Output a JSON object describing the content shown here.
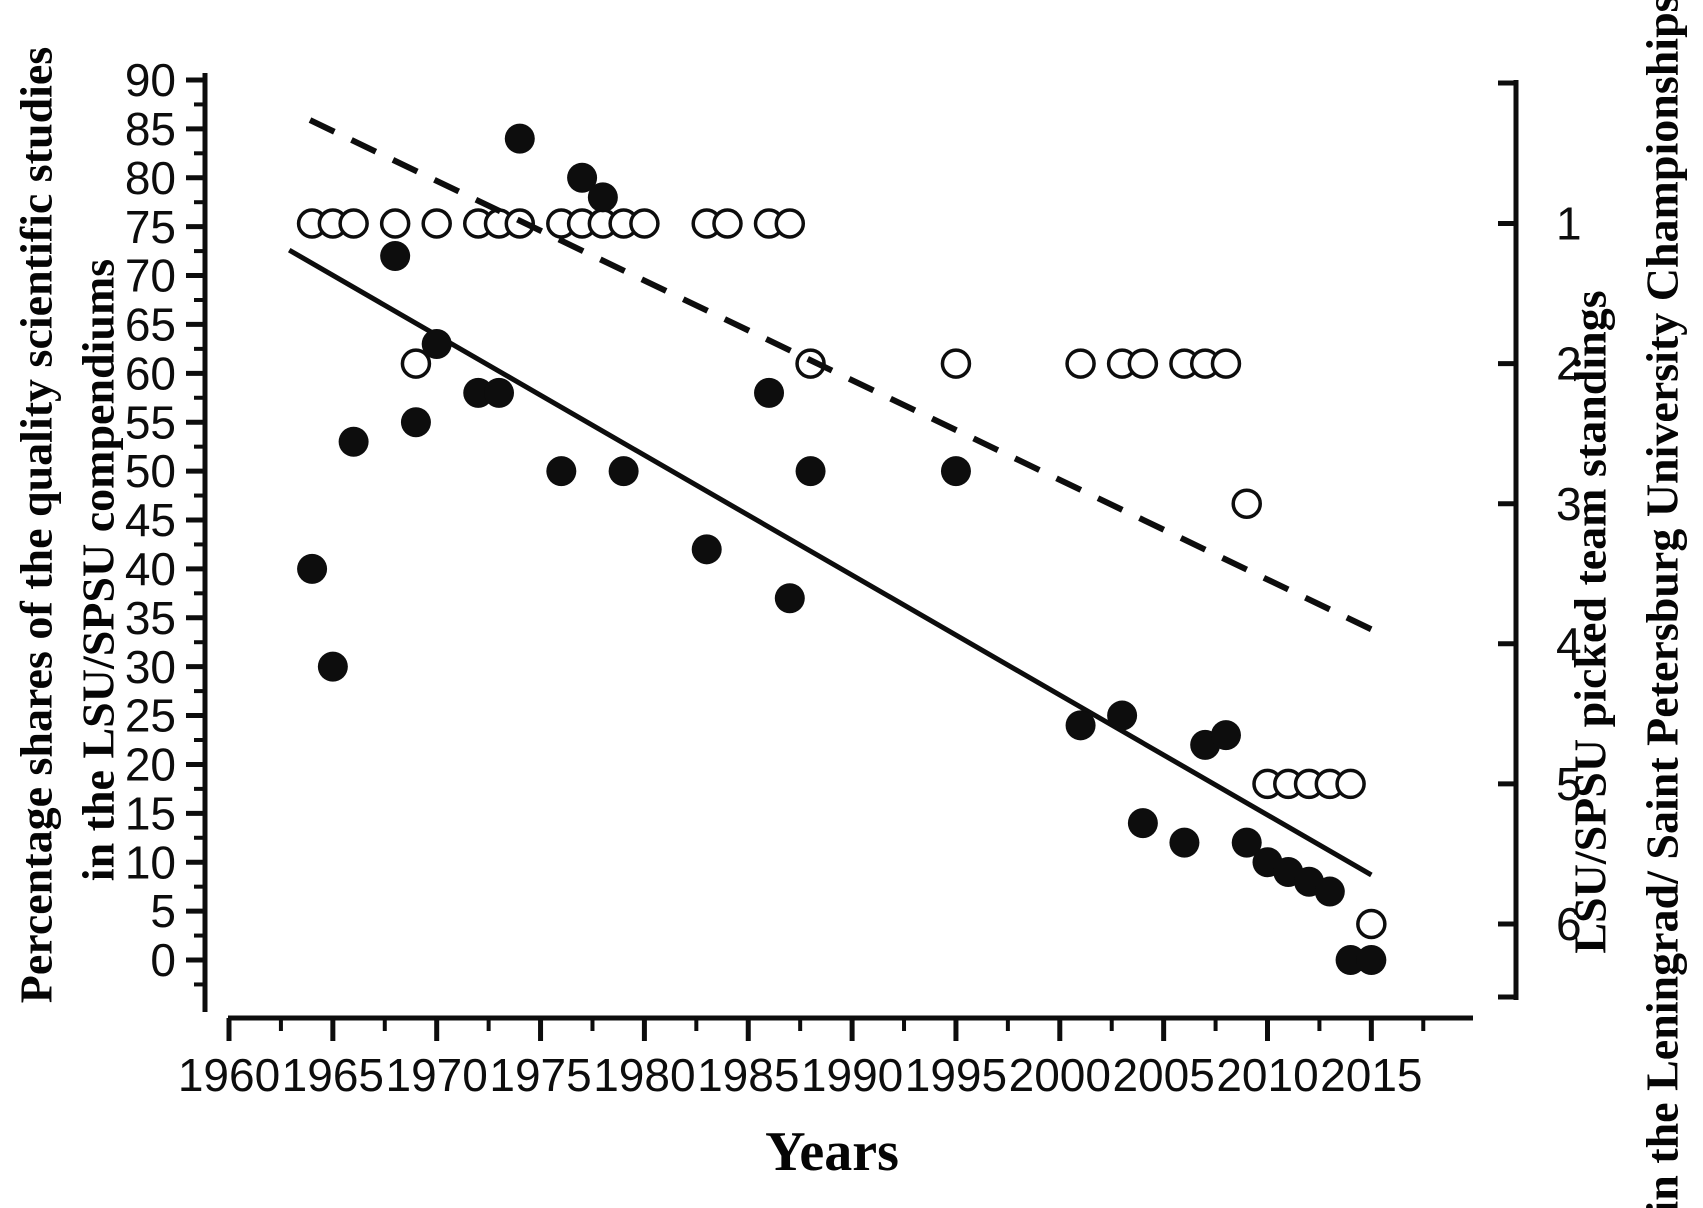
{
  "figure": {
    "background": "#ffffff",
    "ink_color": "#0d0d0d",
    "open_marker_fill": "#ffffff"
  },
  "titles": {
    "left_axis_line1": "Percentage shares of the quality scientific studies",
    "left_axis_line2": "in the LSU/SPSU compendiums",
    "right_axis_line1": "LSU/SPSU picked team standings",
    "right_axis_line2": "in the Leningrad/ Saint Petersburg University Championships",
    "x_axis": "Years"
  },
  "chart_data": {
    "type": "scatter",
    "title": "",
    "xlabel": "Years",
    "x_axis": {
      "range": [
        1960,
        2019
      ],
      "major_ticks": [
        1960,
        1965,
        1970,
        1975,
        1980,
        1985,
        1990,
        1995,
        2000,
        2005,
        2010,
        2015
      ],
      "minor_tick_step": 2.5,
      "grid": false
    },
    "left_y_axis": {
      "label": "Percentage shares of the quality scientific studies in the LSU/SPSU compendiums",
      "range": [
        0,
        90
      ],
      "major_ticks": [
        0,
        5,
        10,
        15,
        20,
        25,
        30,
        35,
        40,
        45,
        50,
        55,
        60,
        65,
        70,
        75,
        80,
        85,
        90
      ],
      "minor_tick_step": 2.5
    },
    "right_y_axis": {
      "label": "LSU/SPSU picked team standings in the Leningrad/ Saint Petersburg University Championships",
      "major_ticks": [
        1,
        2,
        3,
        4,
        5,
        6
      ],
      "note": "standing 1 aligns with 75% level; each standing step equals about 14.3% on the left axis; axis increases downward"
    },
    "legend": "none",
    "series": [
      {
        "name": "Percentage shares of quality scientific studies",
        "marker": "filled-circle",
        "axis": "left",
        "points": [
          [
            1964,
            40
          ],
          [
            1965,
            30
          ],
          [
            1966,
            53
          ],
          [
            1968,
            72
          ],
          [
            1969,
            55
          ],
          [
            1970,
            63
          ],
          [
            1972,
            58
          ],
          [
            1973,
            58
          ],
          [
            1974,
            84
          ],
          [
            1976,
            50
          ],
          [
            1977,
            80
          ],
          [
            1978,
            78
          ],
          [
            1979,
            50
          ],
          [
            1983,
            42
          ],
          [
            1986,
            58
          ],
          [
            1987,
            37
          ],
          [
            1988,
            50
          ],
          [
            1995,
            50
          ],
          [
            2001,
            24
          ],
          [
            2003,
            25
          ],
          [
            2004,
            14
          ],
          [
            2006,
            12
          ],
          [
            2007,
            22
          ],
          [
            2008,
            23
          ],
          [
            2009,
            12
          ],
          [
            2010,
            10
          ],
          [
            2011,
            9
          ],
          [
            2012,
            8
          ],
          [
            2013,
            7
          ],
          [
            2014,
            0
          ],
          [
            2015,
            0
          ]
        ]
      },
      {
        "name": "LSU/SPSU picked team standings",
        "marker": "open-circle",
        "axis": "right",
        "points": [
          [
            1964,
            1
          ],
          [
            1965,
            1
          ],
          [
            1966,
            1
          ],
          [
            1968,
            1
          ],
          [
            1970,
            1
          ],
          [
            1972,
            1
          ],
          [
            1973,
            1
          ],
          [
            1974,
            1
          ],
          [
            1976,
            1
          ],
          [
            1977,
            1
          ],
          [
            1978,
            1
          ],
          [
            1979,
            1
          ],
          [
            1980,
            1
          ],
          [
            1983,
            1
          ],
          [
            1984,
            1
          ],
          [
            1986,
            1
          ],
          [
            1987,
            1
          ],
          [
            1969,
            2
          ],
          [
            1988,
            2
          ],
          [
            1995,
            2
          ],
          [
            2001,
            2
          ],
          [
            2003,
            2
          ],
          [
            2004,
            2
          ],
          [
            2006,
            2
          ],
          [
            2007,
            2
          ],
          [
            2008,
            2
          ],
          [
            2009,
            3
          ],
          [
            2010,
            5
          ],
          [
            2011,
            5
          ],
          [
            2012,
            5
          ],
          [
            2013,
            5
          ],
          [
            2014,
            5
          ],
          [
            2015,
            6
          ]
        ]
      }
    ],
    "trend_lines": [
      {
        "name": "solid-regression-line",
        "style": "solid",
        "axis": "left",
        "from": [
          1962.9,
          72.6
        ],
        "to": [
          2015.0,
          8.7
        ]
      },
      {
        "name": "dashed-regression-line",
        "style": "dashed",
        "axis": "left",
        "from": [
          1963.9,
          85.9
        ],
        "to": [
          2015.8,
          33.0
        ]
      }
    ]
  }
}
